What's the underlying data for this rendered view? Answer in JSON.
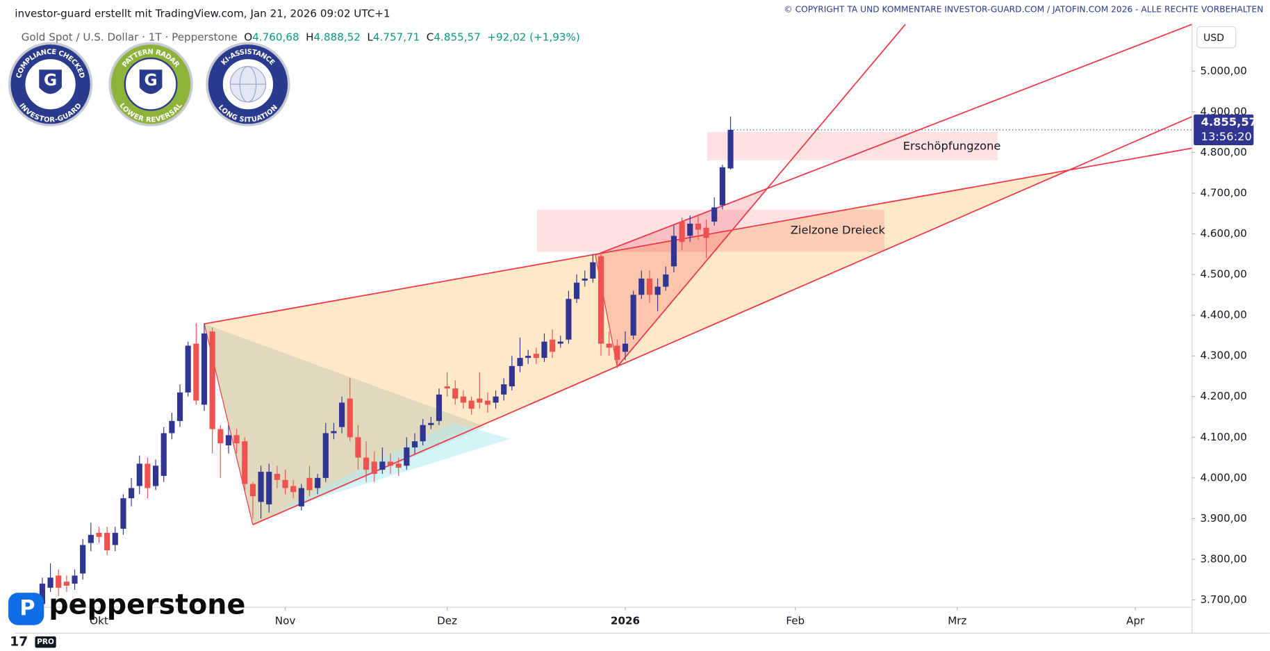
{
  "header": {
    "credit": "investor-guard erstellt mit TradingView.com, Jan 21, 2026 09:02 UTC+1",
    "copyright": "© COPYRIGHT TA UND KOMMENTARE INVESTOR-GUARD.COM / JATOFIN.COM 2026 - ALLE RECHTE VORBEHALTEN"
  },
  "badges": [
    {
      "top": "COMPLIANCE CHECKED",
      "bottom": "INVESTOR-GUARD"
    },
    {
      "top": "PATTERN RADAR",
      "bottom": "LOWER REVERSAL"
    },
    {
      "top": "KI-ASSISTANCE",
      "bottom": "LONG SITUATION"
    }
  ],
  "branding": {
    "broker": "pepperstone",
    "tier": "PRO"
  },
  "chart_data": {
    "type": "candlestick",
    "symbol": "Gold Spot / U.S. Dollar · 1T · Pepperstone",
    "ohlc": [
      {
        "label": "O",
        "value": "4.760,68"
      },
      {
        "label": "H",
        "value": "4.888,52"
      },
      {
        "label": "L",
        "value": "4.757,71"
      },
      {
        "label": "C",
        "value": "4.855,57"
      }
    ],
    "change": "+92,02 (+1,93%)",
    "currency": "USD",
    "last_price": {
      "label": "4.855,57",
      "countdown": "13:56:20"
    },
    "annotations": [
      "Erschöpfungzone",
      "Zielzone Dreieck"
    ],
    "up_color": "#2f3591",
    "down_color": "#ef5350",
    "x": [
      -7,
      -6,
      -5,
      -4,
      -3,
      -2,
      -1,
      0,
      1,
      2,
      3,
      4,
      5,
      6,
      7,
      8,
      9,
      10,
      11,
      12,
      13,
      14,
      15,
      16,
      17,
      18,
      19,
      20,
      21,
      22,
      23,
      24,
      25,
      26,
      27,
      28,
      29,
      30,
      31,
      32,
      33,
      34,
      35,
      36,
      37,
      38,
      39,
      40,
      41,
      42,
      43,
      44,
      45,
      46,
      47,
      48,
      49,
      50,
      51,
      52,
      53,
      54,
      55,
      56,
      57,
      58,
      59,
      60,
      61,
      62,
      63,
      64,
      65,
      66,
      67,
      68,
      69,
      70,
      71,
      72,
      73,
      74,
      75,
      76,
      77,
      78
    ],
    "open": [
      3690,
      3730,
      3760,
      3745,
      3740,
      3765,
      3840,
      3865,
      3865,
      3835,
      3875,
      3950,
      3980,
      4035,
      3980,
      4005,
      4110,
      4140,
      4210,
      4330,
      4180,
      4360,
      4120,
      4080,
      4105,
      4090,
      3985,
      3941,
      3935,
      4010,
      3995,
      3980,
      3930,
      4000,
      3975,
      4000,
      4110,
      4125,
      4195,
      4100,
      4050,
      4040,
      4020,
      4040,
      4035,
      4030,
      4075,
      4090,
      4130,
      4140,
      4225,
      4220,
      4200,
      4190,
      4195,
      4190,
      4185,
      4205,
      4225,
      4275,
      4295,
      4305,
      4295,
      4340,
      4330,
      4340,
      4440,
      4485,
      4490,
      4545,
      4330,
      4325,
      4310,
      4350,
      4450,
      4490,
      4450,
      4470,
      4520,
      4630,
      4595,
      4625,
      4615,
      4630,
      4670,
      4760.68
    ],
    "high": [
      3755,
      3790,
      3775,
      3760,
      3775,
      3850,
      3890,
      3880,
      3880,
      3880,
      3960,
      4000,
      4055,
      4050,
      4045,
      4125,
      4160,
      4230,
      4335,
      4380,
      4380,
      4370,
      4130,
      4130,
      4120,
      4100,
      3990,
      4030,
      4035,
      4030,
      4020,
      3995,
      3985,
      4030,
      4010,
      4135,
      4135,
      4200,
      4245,
      4130,
      4090,
      4065,
      4075,
      4060,
      4050,
      4100,
      4110,
      4145,
      4150,
      4220,
      4260,
      4240,
      4215,
      4200,
      4260,
      4210,
      4215,
      4245,
      4300,
      4345,
      4315,
      4320,
      4355,
      4365,
      4350,
      4460,
      4500,
      4510,
      4550,
      4555,
      4360,
      4340,
      4360,
      4460,
      4510,
      4510,
      4490,
      4520,
      4620,
      4640,
      4645,
      4645,
      4635,
      4690,
      4770,
      4888.52
    ],
    "low": [
      3680,
      3720,
      3710,
      3720,
      3725,
      3750,
      3820,
      3840,
      3810,
      3820,
      3860,
      3930,
      3960,
      3950,
      3970,
      3990,
      4095,
      4125,
      4200,
      4180,
      4165,
      4060,
      4000,
      4060,
      4060,
      3970,
      3900,
      3900,
      3915,
      3975,
      3960,
      3950,
      3920,
      3955,
      3960,
      3990,
      4095,
      4110,
      4090,
      4020,
      3990,
      3990,
      4010,
      4010,
      4005,
      4020,
      4060,
      4080,
      4120,
      4130,
      4200,
      4180,
      4170,
      4155,
      4170,
      4160,
      4170,
      4190,
      4215,
      4260,
      4280,
      4280,
      4285,
      4295,
      4320,
      4330,
      4430,
      4470,
      4480,
      4300,
      4300,
      4270,
      4290,
      4340,
      4440,
      4430,
      4410,
      4460,
      4505,
      4560,
      4580,
      4585,
      4540,
      4620,
      4660,
      4757.71
    ],
    "close": [
      3740,
      3755,
      3730,
      3735,
      3760,
      3835,
      3860,
      3855,
      3822,
      3865,
      3950,
      3975,
      4035,
      3975,
      4030,
      4110,
      4140,
      4210,
      4325,
      4190,
      4355,
      4120,
      4085,
      4105,
      4085,
      3985,
      3955,
      4015,
      4015,
      3995,
      3975,
      3965,
      3975,
      3970,
      4000,
      4110,
      4115,
      4185,
      4100,
      4050,
      4020,
      4010,
      4040,
      4030,
      4025,
      4075,
      4090,
      4130,
      4135,
      4205,
      4220,
      4195,
      4185,
      4170,
      4185,
      4180,
      4200,
      4230,
      4275,
      4295,
      4300,
      4295,
      4335,
      4310,
      4335,
      4440,
      4480,
      4490,
      4530,
      4330,
      4320,
      4290,
      4330,
      4450,
      4490,
      4450,
      4470,
      4500,
      4595,
      4580,
      4625,
      4610,
      4590,
      4665,
      4763.55,
      4855.57
    ],
    "xlim": [
      -10.4,
      135
    ],
    "xticks": [
      {
        "value": 0,
        "label": "Okt"
      },
      {
        "value": 23,
        "label": "Nov"
      },
      {
        "value": 43,
        "label": "Dez"
      },
      {
        "value": 65,
        "label": "2026"
      },
      {
        "value": 86,
        "label": "Feb"
      },
      {
        "value": 106,
        "label": "Mrz"
      },
      {
        "value": 128,
        "label": "Apr"
      }
    ],
    "ylim": [
      3682,
      5115
    ],
    "yticks": [
      {
        "value": 3700,
        "label": "3.700,00"
      },
      {
        "value": 3800,
        "label": "3.800,00"
      },
      {
        "value": 3900,
        "label": "3.900,00"
      },
      {
        "value": 4000,
        "label": "4.000,00"
      },
      {
        "value": 4100,
        "label": "4.100,00"
      },
      {
        "value": 4200,
        "label": "4.200,00"
      },
      {
        "value": 4300,
        "label": "4.300,00"
      },
      {
        "value": 4400,
        "label": "4.400,00"
      },
      {
        "value": 4500,
        "label": "4.500,00"
      },
      {
        "value": 4600,
        "label": "4.600,00"
      },
      {
        "value": 4700,
        "label": "4.700,00"
      },
      {
        "value": 4800,
        "label": "4.800,00"
      },
      {
        "value": 4900,
        "label": "4.900,00"
      },
      {
        "value": 5000,
        "label": "5.000,00"
      }
    ],
    "grid": false
  }
}
